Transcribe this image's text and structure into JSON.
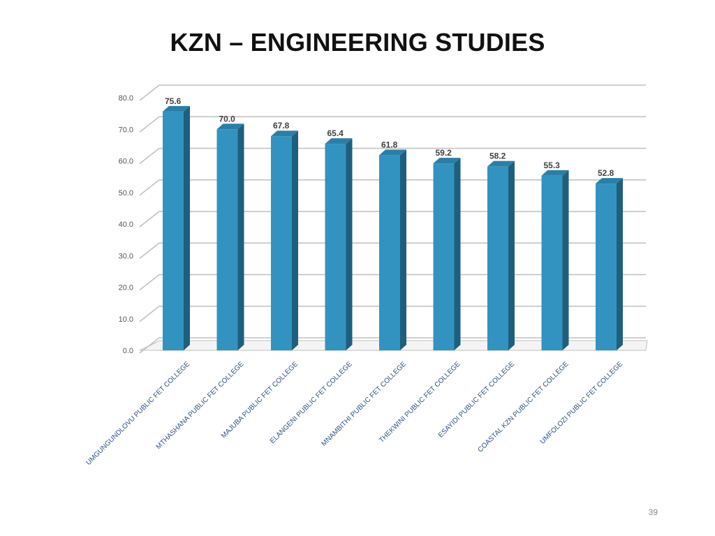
{
  "slide": {
    "title": "KZN – ENGINEERING STUDIES",
    "page_number": "39"
  },
  "colors": {
    "bar_front": "#3393c0",
    "bar_side": "#1e5f7e",
    "bar_top": "#2a7fa7",
    "grid": "#bfbfbf",
    "category_text": "#2a4f8a"
  },
  "chart_data": {
    "type": "bar",
    "style": "3d-column",
    "categories": [
      "UMGUNGUNDLOVU PUBLIC FET COLLEGE",
      "MTHASHANA PUBLIC FET COLLEGE",
      "MAJUBA PUBLIC FET COLLEGE",
      "ELANGENI PUBLIC FET COLLEGE",
      "MNAMBITHI PUBLIC FET COLLEGE",
      "THEKWINI PUBLIC FET COLLEGE",
      "ESAYIDI PUBLIC FET COLLEGE",
      "COASTAL KZN PUBLIC FET COLLEGE",
      "UMFOLOZI PUBLIC FET COLLEGE"
    ],
    "values": [
      75.6,
      70.0,
      67.8,
      65.4,
      61.8,
      59.2,
      58.2,
      55.3,
      52.8
    ],
    "value_labels": [
      "75.6",
      "70.0",
      "67.8",
      "65.4",
      "61.8",
      "59.2",
      "58.2",
      "55.3",
      "52.8"
    ],
    "ylim": [
      0,
      80
    ],
    "yticks": [
      "0.0",
      "10.0",
      "20.0",
      "30.0",
      "40.0",
      "50.0",
      "60.0",
      "70.0",
      "80.0"
    ],
    "grid": true,
    "legend": "none"
  }
}
